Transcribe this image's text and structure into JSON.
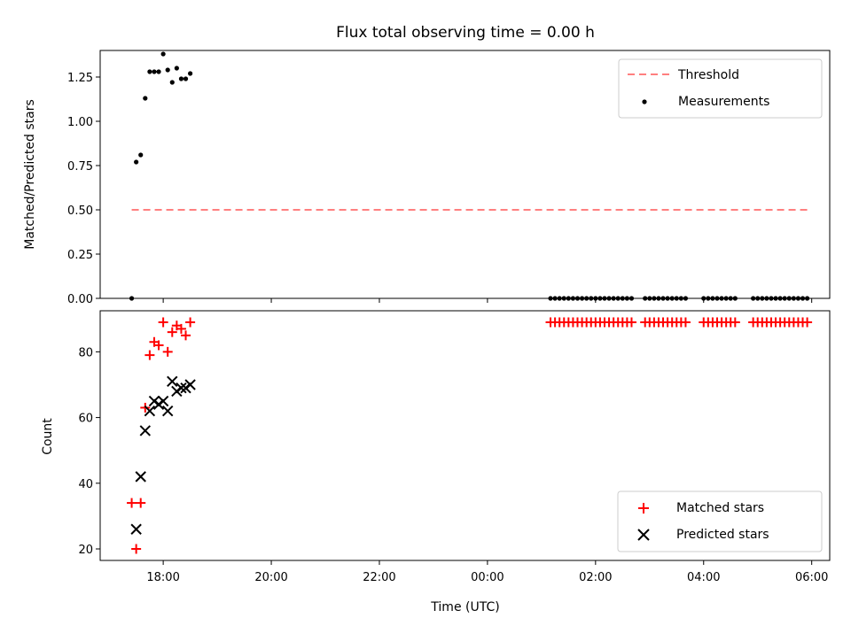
{
  "chart_data": [
    {
      "type": "scatter",
      "title": "Flux total observing time = 0.00 h",
      "xlabel": "",
      "ylabel": "Matched/Predicted stars",
      "ylim": [
        0,
        1.4
      ],
      "yticks": [
        "0.00",
        "0.25",
        "0.50",
        "0.75",
        "1.00",
        "1.25"
      ],
      "legend_position": "top-right",
      "threshold": {
        "name": "Threshold",
        "value": 0.5,
        "x_start": "17:25",
        "x_end": "05:55",
        "color": "#ff7f7f",
        "style": "dashed"
      },
      "series": [
        {
          "name": "Measurements",
          "marker": "dot",
          "color": "#000000",
          "points": [
            [
              "17:25",
              0.0
            ],
            [
              "17:30",
              0.77
            ],
            [
              "17:35",
              0.81
            ],
            [
              "17:40",
              1.13
            ],
            [
              "17:45",
              1.28
            ],
            [
              "17:50",
              1.28
            ],
            [
              "17:55",
              1.28
            ],
            [
              "18:00",
              1.38
            ],
            [
              "18:05",
              1.29
            ],
            [
              "18:10",
              1.22
            ],
            [
              "18:15",
              1.3
            ],
            [
              "18:20",
              1.24
            ],
            [
              "18:25",
              1.24
            ],
            [
              "18:30",
              1.27
            ],
            [
              "01:10",
              0.0
            ],
            [
              "01:15",
              0.0
            ],
            [
              "01:20",
              0.0
            ],
            [
              "01:25",
              0.0
            ],
            [
              "01:30",
              0.0
            ],
            [
              "01:35",
              0.0
            ],
            [
              "01:40",
              0.0
            ],
            [
              "01:45",
              0.0
            ],
            [
              "01:50",
              0.0
            ],
            [
              "01:55",
              0.0
            ],
            [
              "02:00",
              0.0
            ],
            [
              "02:05",
              0.0
            ],
            [
              "02:10",
              0.0
            ],
            [
              "02:15",
              0.0
            ],
            [
              "02:20",
              0.0
            ],
            [
              "02:25",
              0.0
            ],
            [
              "02:30",
              0.0
            ],
            [
              "02:35",
              0.0
            ],
            [
              "02:40",
              0.0
            ],
            [
              "02:55",
              0.0
            ],
            [
              "03:00",
              0.0
            ],
            [
              "03:05",
              0.0
            ],
            [
              "03:10",
              0.0
            ],
            [
              "03:15",
              0.0
            ],
            [
              "03:20",
              0.0
            ],
            [
              "03:25",
              0.0
            ],
            [
              "03:30",
              0.0
            ],
            [
              "03:35",
              0.0
            ],
            [
              "03:40",
              0.0
            ],
            [
              "04:00",
              0.0
            ],
            [
              "04:05",
              0.0
            ],
            [
              "04:10",
              0.0
            ],
            [
              "04:15",
              0.0
            ],
            [
              "04:20",
              0.0
            ],
            [
              "04:25",
              0.0
            ],
            [
              "04:30",
              0.0
            ],
            [
              "04:35",
              0.0
            ],
            [
              "04:55",
              0.0
            ],
            [
              "05:00",
              0.0
            ],
            [
              "05:05",
              0.0
            ],
            [
              "05:10",
              0.0
            ],
            [
              "05:15",
              0.0
            ],
            [
              "05:20",
              0.0
            ],
            [
              "05:25",
              0.0
            ],
            [
              "05:30",
              0.0
            ],
            [
              "05:35",
              0.0
            ],
            [
              "05:40",
              0.0
            ],
            [
              "05:45",
              0.0
            ],
            [
              "05:50",
              0.0
            ],
            [
              "05:55",
              0.0
            ]
          ]
        }
      ]
    },
    {
      "type": "scatter",
      "title": "",
      "xlabel": "Time (UTC)",
      "ylabel": "Count",
      "ylim": [
        16.5,
        92.5
      ],
      "yticks": [
        "20",
        "40",
        "60",
        "80"
      ],
      "xlim": [
        "16:50",
        "06:20"
      ],
      "xticks": [
        "18:00",
        "20:00",
        "22:00",
        "00:00",
        "02:00",
        "04:00",
        "06:00"
      ],
      "legend_position": "bottom-right",
      "series": [
        {
          "name": "Matched stars",
          "marker": "plus",
          "color": "#ff0000",
          "points": [
            [
              "17:25",
              34
            ],
            [
              "17:30",
              20
            ],
            [
              "17:35",
              34
            ],
            [
              "17:40",
              63
            ],
            [
              "17:45",
              79
            ],
            [
              "17:50",
              83
            ],
            [
              "17:55",
              82
            ],
            [
              "18:00",
              89
            ],
            [
              "18:05",
              80
            ],
            [
              "18:10",
              86
            ],
            [
              "18:15",
              88
            ],
            [
              "18:20",
              87
            ],
            [
              "18:25",
              85
            ],
            [
              "18:30",
              89
            ],
            [
              "01:10",
              89
            ],
            [
              "01:15",
              89
            ],
            [
              "01:20",
              89
            ],
            [
              "01:25",
              89
            ],
            [
              "01:30",
              89
            ],
            [
              "01:35",
              89
            ],
            [
              "01:40",
              89
            ],
            [
              "01:45",
              89
            ],
            [
              "01:50",
              89
            ],
            [
              "01:55",
              89
            ],
            [
              "02:00",
              89
            ],
            [
              "02:05",
              89
            ],
            [
              "02:10",
              89
            ],
            [
              "02:15",
              89
            ],
            [
              "02:20",
              89
            ],
            [
              "02:25",
              89
            ],
            [
              "02:30",
              89
            ],
            [
              "02:35",
              89
            ],
            [
              "02:40",
              89
            ],
            [
              "02:55",
              89
            ],
            [
              "03:00",
              89
            ],
            [
              "03:05",
              89
            ],
            [
              "03:10",
              89
            ],
            [
              "03:15",
              89
            ],
            [
              "03:20",
              89
            ],
            [
              "03:25",
              89
            ],
            [
              "03:30",
              89
            ],
            [
              "03:35",
              89
            ],
            [
              "03:40",
              89
            ],
            [
              "04:00",
              89
            ],
            [
              "04:05",
              89
            ],
            [
              "04:10",
              89
            ],
            [
              "04:15",
              89
            ],
            [
              "04:20",
              89
            ],
            [
              "04:25",
              89
            ],
            [
              "04:30",
              89
            ],
            [
              "04:35",
              89
            ],
            [
              "04:55",
              89
            ],
            [
              "05:00",
              89
            ],
            [
              "05:05",
              89
            ],
            [
              "05:10",
              89
            ],
            [
              "05:15",
              89
            ],
            [
              "05:20",
              89
            ],
            [
              "05:25",
              89
            ],
            [
              "05:30",
              89
            ],
            [
              "05:35",
              89
            ],
            [
              "05:40",
              89
            ],
            [
              "05:45",
              89
            ],
            [
              "05:50",
              89
            ],
            [
              "05:55",
              89
            ]
          ]
        },
        {
          "name": "Predicted stars",
          "marker": "cross",
          "color": "#000000",
          "points": [
            [
              "17:30",
              26
            ],
            [
              "17:35",
              42
            ],
            [
              "17:40",
              56
            ],
            [
              "17:45",
              62
            ],
            [
              "17:50",
              65
            ],
            [
              "17:55",
              64
            ],
            [
              "18:00",
              65
            ],
            [
              "18:05",
              62
            ],
            [
              "18:10",
              71
            ],
            [
              "18:15",
              68
            ],
            [
              "18:20",
              69
            ],
            [
              "18:25",
              69
            ],
            [
              "18:30",
              70
            ]
          ]
        }
      ]
    }
  ]
}
